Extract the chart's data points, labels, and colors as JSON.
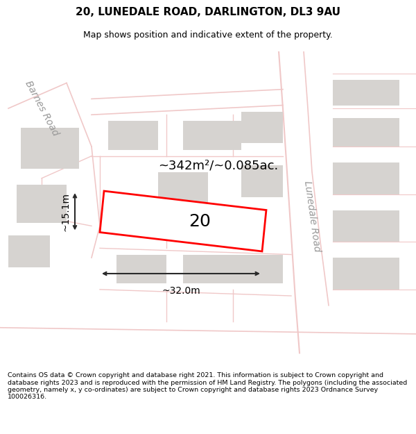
{
  "title_line1": "20, LUNEDALE ROAD, DARLINGTON, DL3 9AU",
  "title_line2": "Map shows position and indicative extent of the property.",
  "footer_text": "Contains OS data © Crown copyright and database right 2021. This information is subject to Crown copyright and database rights 2023 and is reproduced with the permission of HM Land Registry. The polygons (including the associated geometry, namely x, y co-ordinates) are subject to Crown copyright and database rights 2023 Ordnance Survey 100026316.",
  "map_bg": "#f7f5f3",
  "road_color": "#f0c8c8",
  "building_color": "#d6d3d0",
  "highlight_color": "#ff0000",
  "dim_color": "#2a2a2a",
  "road_outline_color": "#e8a0a0",
  "title_fontsize": 11,
  "subtitle_fontsize": 9.5,
  "label_number": "20",
  "area_text": "~342m²/~0.085ac.",
  "dim_width": "~32.0m",
  "dim_height": "~15.1m",
  "road_label_lunedale": "Lunedale Road",
  "road_label_barnes": "Barnes Road"
}
